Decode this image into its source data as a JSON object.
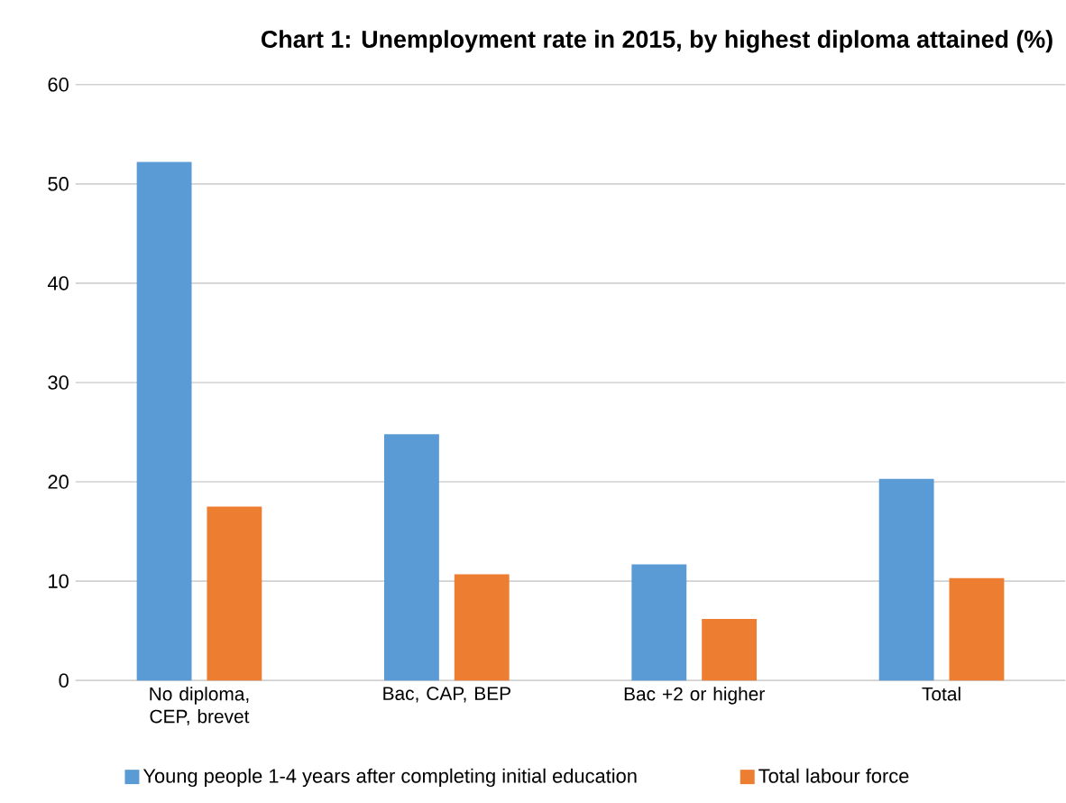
{
  "chart_data": {
    "type": "bar",
    "title": "Chart 1: Unemployment rate in 2015, by highest diploma attained (%)",
    "categories": [
      "No diploma, CEP, brevet",
      "Bac, CAP, BEP",
      "Bac +2 or higher",
      "Total"
    ],
    "series": [
      {
        "name": "Young people 1-4 years after completing initial education",
        "color": "#5b9bd5",
        "values": [
          52.2,
          24.8,
          11.7,
          20.3
        ]
      },
      {
        "name": "Total labour force",
        "color": "#ed7d31",
        "values": [
          17.5,
          10.7,
          6.2,
          10.3
        ]
      }
    ],
    "ylim": [
      0,
      60
    ],
    "yticks": [
      0,
      10,
      20,
      30,
      40,
      50,
      60
    ],
    "grid": "y",
    "legend": "bottom"
  }
}
